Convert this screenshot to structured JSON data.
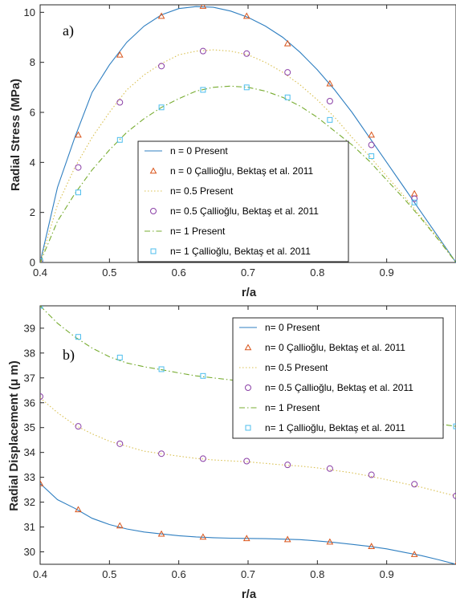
{
  "chart_data": [
    {
      "type": "line",
      "panel_label": "a)",
      "xlabel": "r/a",
      "ylabel": "Radial Stress (MPa)",
      "xlim": [
        0.4,
        1.0
      ],
      "ylim": [
        0,
        10.3
      ],
      "xticks": [
        0.4,
        0.5,
        0.6,
        0.7,
        0.8,
        0.9
      ],
      "yticks": [
        0,
        2,
        4,
        6,
        8,
        10
      ],
      "xtick_labels": [
        "0.4",
        "0.5",
        "0.6",
        "0.7",
        "0.8",
        "0.9"
      ],
      "ytick_labels": [
        "0",
        "2",
        "4",
        "6",
        "8",
        "10"
      ],
      "legend_position": "center-right",
      "series": [
        {
          "name": "n = 0 Present",
          "style": "solid",
          "color": "#2f7fc1",
          "x": [
            0.4,
            0.425,
            0.45,
            0.475,
            0.5,
            0.525,
            0.55,
            0.575,
            0.6,
            0.625,
            0.65,
            0.675,
            0.7,
            0.725,
            0.75,
            0.775,
            0.8,
            0.825,
            0.85,
            0.875,
            0.9,
            0.925,
            0.95,
            0.975,
            1.0
          ],
          "y": [
            0,
            3.0,
            5.0,
            6.8,
            7.9,
            8.8,
            9.45,
            9.9,
            10.15,
            10.23,
            10.2,
            10.05,
            9.8,
            9.45,
            9.0,
            8.4,
            7.7,
            6.9,
            6.0,
            5.0,
            4.0,
            3.0,
            2.0,
            1.0,
            0
          ]
        },
        {
          "name": "n = 0  Çallioğlu, Bektaş et al. 2011",
          "style": "triangle",
          "color": "#d9541a",
          "x": [
            0.4,
            0.455,
            0.515,
            0.575,
            0.635,
            0.698,
            0.757,
            0.818,
            0.878,
            0.94
          ],
          "y": [
            0.05,
            5.1,
            8.3,
            9.85,
            10.25,
            9.85,
            8.75,
            7.15,
            5.1,
            2.75
          ]
        },
        {
          "name": "n= 0.5 Present",
          "style": "dotted",
          "color": "#d9c050",
          "x": [
            0.4,
            0.425,
            0.45,
            0.475,
            0.5,
            0.525,
            0.55,
            0.575,
            0.6,
            0.625,
            0.65,
            0.675,
            0.7,
            0.725,
            0.75,
            0.775,
            0.8,
            0.825,
            0.85,
            0.875,
            0.9,
            0.925,
            0.95,
            0.975,
            1.0
          ],
          "y": [
            0,
            2.3,
            3.8,
            5.0,
            6.0,
            6.9,
            7.5,
            7.95,
            8.3,
            8.45,
            8.5,
            8.45,
            8.3,
            8.0,
            7.6,
            7.1,
            6.5,
            5.8,
            5.0,
            4.25,
            3.45,
            2.65,
            1.8,
            0.95,
            0
          ]
        },
        {
          "name": "n= 0.5 Çallioğlu, Bektaş et al. 2011",
          "style": "circle",
          "color": "#8a3fa6",
          "x": [
            0.4,
            0.455,
            0.515,
            0.575,
            0.635,
            0.698,
            0.757,
            0.818,
            0.878,
            0.94
          ],
          "y": [
            0.05,
            3.8,
            6.4,
            7.85,
            8.45,
            8.35,
            7.6,
            6.45,
            4.7,
            2.55
          ]
        },
        {
          "name": "n= 1 Present",
          "style": "dashdot",
          "color": "#77ac30",
          "x": [
            0.4,
            0.425,
            0.45,
            0.475,
            0.5,
            0.525,
            0.55,
            0.575,
            0.6,
            0.625,
            0.65,
            0.675,
            0.7,
            0.725,
            0.75,
            0.775,
            0.8,
            0.825,
            0.85,
            0.875,
            0.9,
            0.925,
            0.95,
            0.975,
            1.0
          ],
          "y": [
            0,
            1.65,
            2.75,
            3.7,
            4.5,
            5.2,
            5.75,
            6.2,
            6.55,
            6.85,
            7.0,
            7.05,
            7.0,
            6.85,
            6.6,
            6.25,
            5.8,
            5.25,
            4.7,
            4.05,
            3.3,
            2.55,
            1.75,
            0.9,
            0
          ]
        },
        {
          "name": "n= 1 Çallioğlu, Bektaş et al. 2011",
          "style": "square",
          "color": "#4dbeee",
          "x": [
            0.4,
            0.455,
            0.515,
            0.575,
            0.635,
            0.698,
            0.757,
            0.818,
            0.878,
            0.94
          ],
          "y": [
            0.05,
            2.8,
            4.9,
            6.2,
            6.9,
            7.0,
            6.6,
            5.7,
            4.25,
            2.4
          ]
        }
      ]
    },
    {
      "type": "line",
      "panel_label": "b)",
      "xlabel": "r/a",
      "ylabel": "Radial Displacement (μ m)",
      "xlim": [
        0.4,
        1.0
      ],
      "ylim": [
        29.5,
        39.9
      ],
      "xticks": [
        0.4,
        0.5,
        0.6,
        0.7,
        0.8,
        0.9
      ],
      "yticks": [
        30,
        31,
        32,
        33,
        34,
        35,
        36,
        37,
        38,
        39
      ],
      "xtick_labels": [
        "0.4",
        "0.5",
        "0.6",
        "0.7",
        "0.8",
        "0.9"
      ],
      "ytick_labels": [
        "30",
        "31",
        "32",
        "33",
        "34",
        "35",
        "36",
        "37",
        "38",
        "39"
      ],
      "legend_position": "top-right",
      "series": [
        {
          "name": "n= 0 Present",
          "style": "solid",
          "color": "#2f7fc1",
          "x": [
            0.4,
            0.425,
            0.45,
            0.475,
            0.5,
            0.525,
            0.55,
            0.575,
            0.6,
            0.625,
            0.65,
            0.675,
            0.7,
            0.725,
            0.75,
            0.775,
            0.8,
            0.825,
            0.85,
            0.875,
            0.9,
            0.925,
            0.95,
            0.975,
            1.0
          ],
          "y": [
            32.75,
            32.1,
            31.75,
            31.35,
            31.1,
            30.92,
            30.8,
            30.72,
            30.65,
            30.6,
            30.57,
            30.55,
            30.54,
            30.53,
            30.51,
            30.49,
            30.44,
            30.38,
            30.3,
            30.22,
            30.12,
            29.98,
            29.85,
            29.68,
            29.5
          ]
        },
        {
          "name": "n= 0 Çallioğlu, Bektaş et al. 2011",
          "style": "triangle",
          "color": "#d9541a",
          "x": [
            0.4,
            0.455,
            0.515,
            0.575,
            0.635,
            0.698,
            0.757,
            0.818,
            0.878,
            0.94,
            1.0
          ],
          "y": [
            32.75,
            31.7,
            31.05,
            30.72,
            30.6,
            30.54,
            30.5,
            30.4,
            30.22,
            29.9,
            29.45
          ]
        },
        {
          "name": "n= 0.5 Present",
          "style": "dotted",
          "color": "#d9c050",
          "x": [
            0.4,
            0.425,
            0.45,
            0.475,
            0.5,
            0.525,
            0.55,
            0.575,
            0.6,
            0.625,
            0.65,
            0.675,
            0.7,
            0.725,
            0.75,
            0.775,
            0.8,
            0.825,
            0.85,
            0.875,
            0.9,
            0.925,
            0.95,
            0.975,
            1.0
          ],
          "y": [
            36.2,
            35.6,
            35.1,
            34.75,
            34.45,
            34.25,
            34.05,
            33.95,
            33.85,
            33.76,
            33.7,
            33.66,
            33.62,
            33.56,
            33.5,
            33.45,
            33.38,
            33.28,
            33.18,
            33.05,
            32.9,
            32.75,
            32.6,
            32.42,
            32.25
          ]
        },
        {
          "name": "n= 0.5 Çallioğlu, Bektaş et al. 2011",
          "style": "circle",
          "color": "#8a3fa6",
          "x": [
            0.4,
            0.455,
            0.515,
            0.575,
            0.635,
            0.698,
            0.757,
            0.818,
            0.878,
            0.94,
            1.0
          ],
          "y": [
            36.25,
            35.05,
            34.35,
            33.95,
            33.75,
            33.65,
            33.5,
            33.35,
            33.1,
            32.72,
            32.25
          ]
        },
        {
          "name": "n= 1 Present",
          "style": "dashdot",
          "color": "#77ac30",
          "x": [
            0.4,
            0.425,
            0.45,
            0.475,
            0.5,
            0.525,
            0.55,
            0.575,
            0.6,
            0.625,
            0.65,
            0.675,
            0.7,
            0.725,
            0.75,
            0.775,
            0.8,
            0.825,
            0.85,
            0.875,
            0.9,
            0.925,
            0.95,
            0.975,
            1.0
          ],
          "y": [
            39.9,
            39.2,
            38.65,
            38.2,
            37.85,
            37.6,
            37.45,
            37.33,
            37.2,
            37.08,
            37.0,
            36.92,
            36.82,
            36.7,
            36.55,
            36.4,
            36.25,
            36.05,
            35.9,
            35.75,
            35.6,
            35.45,
            35.3,
            35.15,
            35.05
          ]
        },
        {
          "name": "n= 1 Çallioğlu, Bektaş et al. 2011",
          "style": "square",
          "color": "#4dbeee",
          "x": [
            0.4,
            0.455,
            0.515,
            0.575,
            0.635,
            1.0
          ],
          "y": [
            39.9,
            38.65,
            37.82,
            37.35,
            37.08,
            35.05
          ]
        }
      ]
    }
  ]
}
